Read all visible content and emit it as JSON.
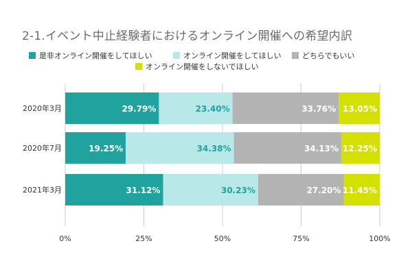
{
  "chart_data": {
    "type": "bar",
    "orientation": "horizontal",
    "stacked": true,
    "title": "2-1.イベント中止経験者におけるオンライン開催への希望内訳",
    "categories": [
      "2020年3月",
      "2020年7月",
      "2021年3月"
    ],
    "series": [
      {
        "name": "是非オンライン開催をしてほしい",
        "color": "#20a39e",
        "label_color": "#ffffff",
        "values": [
          29.79,
          19.25,
          31.12
        ],
        "labels": [
          "29.79%",
          "19.25%",
          "31.12%"
        ]
      },
      {
        "name": "オンライン開催をしてほしい",
        "color": "#b9e8e8",
        "label_color": "#20a39e",
        "values": [
          23.4,
          34.38,
          30.23
        ],
        "labels": [
          "23.40%",
          "34.38%",
          "30.23%"
        ]
      },
      {
        "name": "どちらでもいい",
        "color": "#b3b3b3",
        "label_color": "#ffffff",
        "values": [
          33.76,
          34.13,
          27.2
        ],
        "labels": [
          "33.76%",
          "34.13%",
          "27.20%"
        ]
      },
      {
        "name": "オンライン開催をしないでほしい",
        "color": "#d4e000",
        "label_color": "#ffffff",
        "values": [
          13.05,
          12.25,
          11.45
        ],
        "labels": [
          "13.05%",
          "12.25%",
          "11.45%"
        ]
      }
    ],
    "xlim": [
      0,
      100
    ],
    "xticks": [
      0,
      25,
      50,
      75,
      100
    ],
    "xtick_labels": [
      "0%",
      "25%",
      "50%",
      "75%",
      "100%"
    ],
    "grid": "vertical",
    "grid_color": "#cccccc",
    "legend_position": "top-left"
  }
}
